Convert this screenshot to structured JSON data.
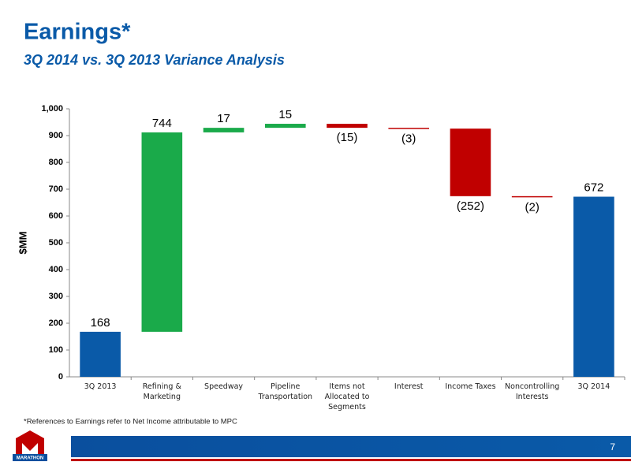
{
  "title": "Earnings*",
  "subtitle": "3Q 2014 vs. 3Q 2013 Variance Analysis",
  "footnote": "*References to Earnings refer to Net Income attributable to MPC",
  "page_number": "7",
  "logo": "MARATHON",
  "chart_data": {
    "type": "waterfall",
    "y_label": "$MM",
    "categories": [
      "3Q 2013",
      "Refining & Marketing",
      "Speedway",
      "Pipeline Transportation",
      "Items not Allocated to Segments",
      "Interest",
      "Income Taxes",
      "Noncontrolling Interests",
      "3Q 2014"
    ],
    "values": [
      168,
      744,
      17,
      15,
      -15,
      -3,
      -252,
      -2,
      672
    ],
    "value_labels": [
      "168",
      "744",
      "17",
      "15",
      "(15)",
      "(3)",
      "(252)",
      "(2)",
      "672"
    ],
    "is_total": [
      true,
      false,
      false,
      false,
      false,
      false,
      false,
      false,
      true
    ],
    "colors": {
      "total": "#0a5aa8",
      "increase": "#1aaa4a",
      "decrease": "#c00000"
    },
    "ylim": [
      0,
      1000
    ],
    "yticks": [
      0,
      100,
      200,
      300,
      400,
      500,
      600,
      700,
      800,
      900,
      {
        "value": 1000,
        "label": "1,000"
      }
    ],
    "grid": false
  }
}
